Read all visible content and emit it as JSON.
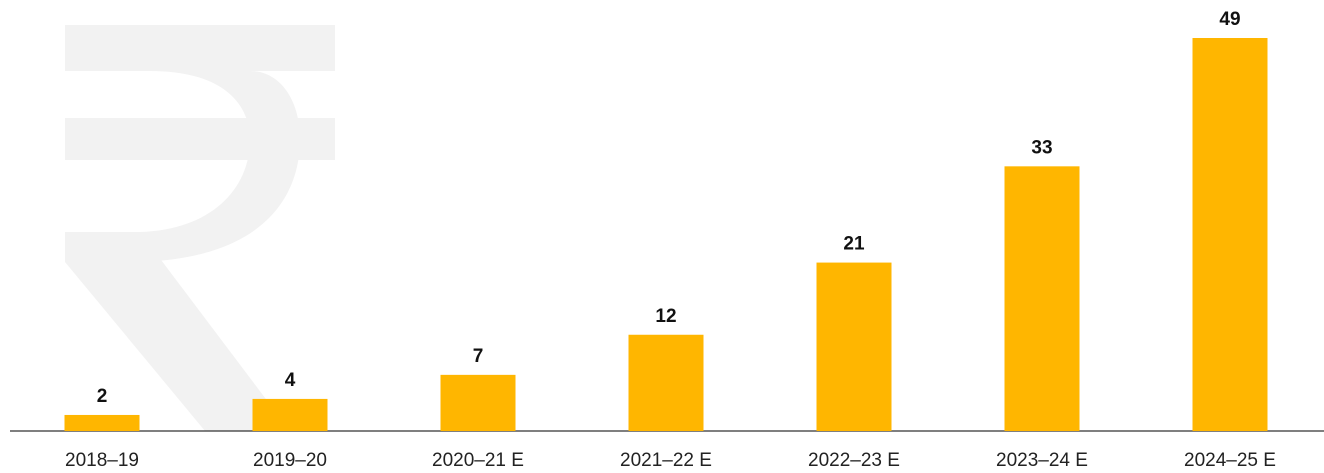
{
  "chart_data": {
    "type": "bar",
    "categories": [
      "2018–19",
      "2019–20",
      "2020–21 E",
      "2021–22 E",
      "2022–23 E",
      "2023–24 E",
      "2024–25 E"
    ],
    "values": [
      2,
      4,
      7,
      12,
      21,
      33,
      49
    ],
    "color": "#ffb600"
  }
}
